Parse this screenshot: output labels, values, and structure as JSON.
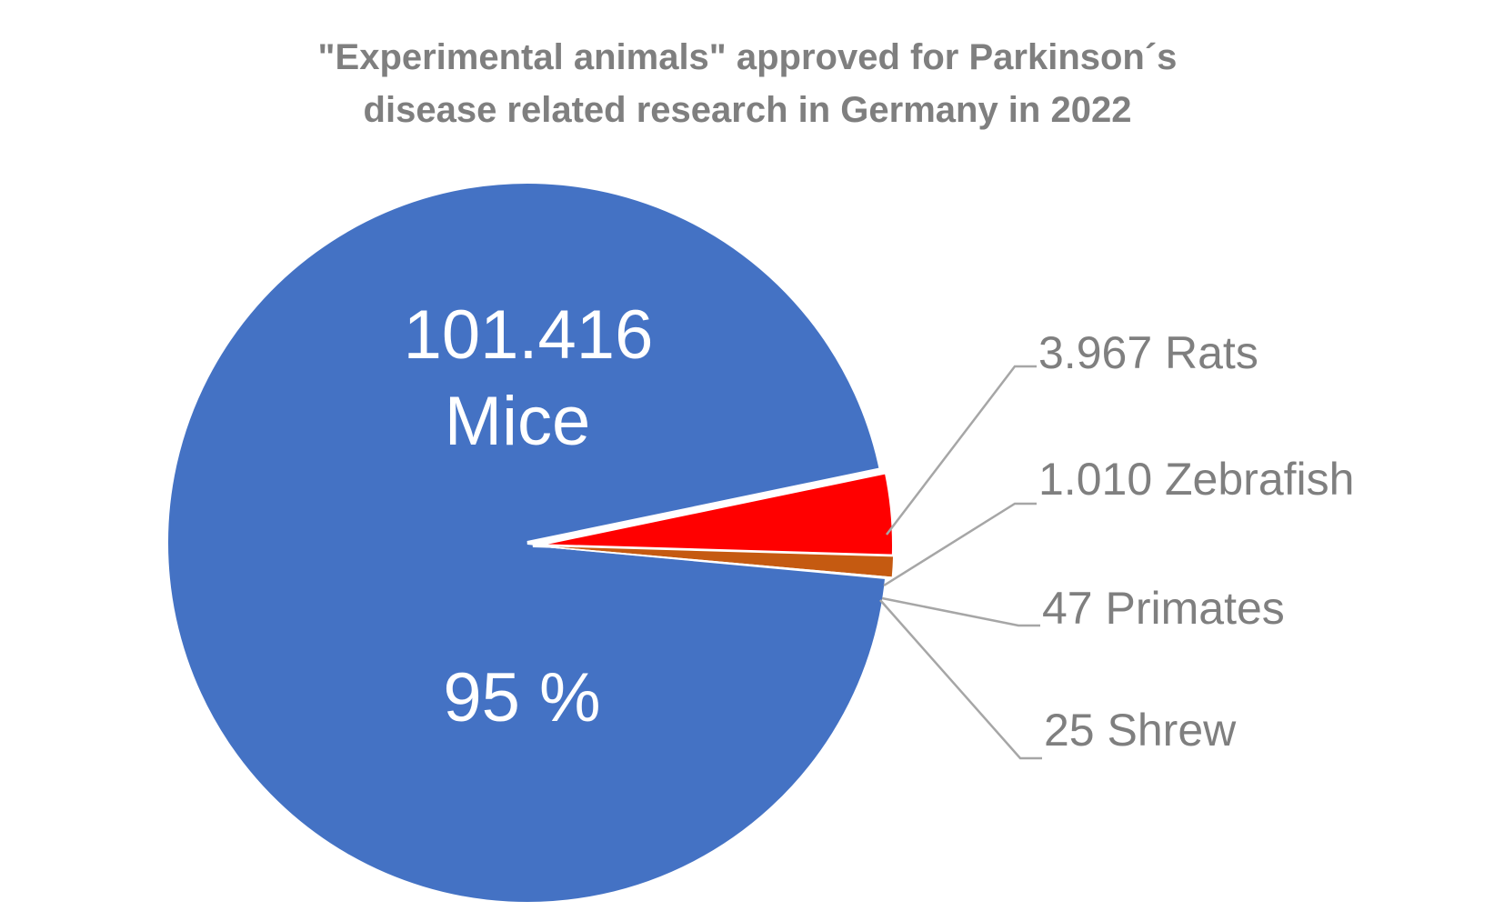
{
  "chart_data": {
    "type": "pie",
    "title_lines": [
      "\"Experimental animals\" approved for Parkinson´s",
      "disease related research in Germany in 2022"
    ],
    "categories": [
      "Mice",
      "Rats",
      "Zebrafish",
      "Primates",
      "Shrew"
    ],
    "values": [
      101416,
      3967,
      1010,
      47,
      25
    ],
    "colors": [
      "#4472c4",
      "#ff0000",
      "#c55a11",
      "#a5a5a5",
      "#ffc000"
    ],
    "exploded": "Mice",
    "main_label": {
      "value_text": "101.416",
      "category_text": "Mice",
      "percent_text": "95 %"
    },
    "outer_labels": [
      "3.967 Rats",
      "1.010 Zebrafish",
      "47 Primates",
      "25 Shrew"
    ],
    "legend": "none"
  }
}
